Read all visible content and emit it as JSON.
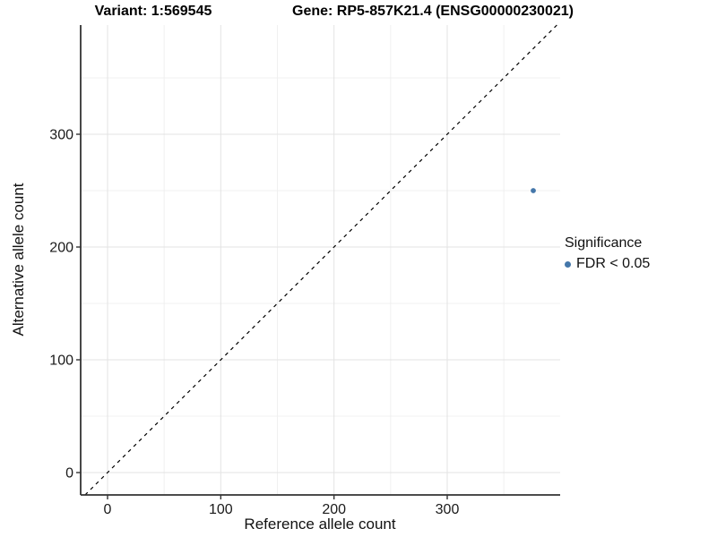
{
  "chart_data": {
    "type": "scatter",
    "titles": {
      "left": "Variant: 1:569545",
      "right": "Gene: RP5-857K21.4 (ENSG00000230021)"
    },
    "xlabel": "Reference allele count",
    "ylabel": "Alternative allele count",
    "xlim": [
      -24,
      400
    ],
    "ylim": [
      -20,
      397
    ],
    "xticks": [
      0,
      100,
      200,
      300
    ],
    "yticks": [
      0,
      100,
      200,
      300
    ],
    "grid": "on",
    "grid_minor_step": 50,
    "identity_line": {
      "style": "dashed",
      "equation": "y = x"
    },
    "series": [
      {
        "name": "FDR < 0.05",
        "color": "#4477aa",
        "points": [
          {
            "x": 376,
            "y": 250
          }
        ]
      }
    ],
    "legend": {
      "title": "Significance",
      "position": "right",
      "items": [
        {
          "label": "FDR < 0.05",
          "color": "#4477aa"
        }
      ]
    },
    "colors": {
      "axis_line": "#333333",
      "tick_text": "#1a1a1a",
      "grid_major": "#e3e3e3",
      "grid_minor": "#f0f0f0",
      "identity_line": "#000000"
    }
  }
}
